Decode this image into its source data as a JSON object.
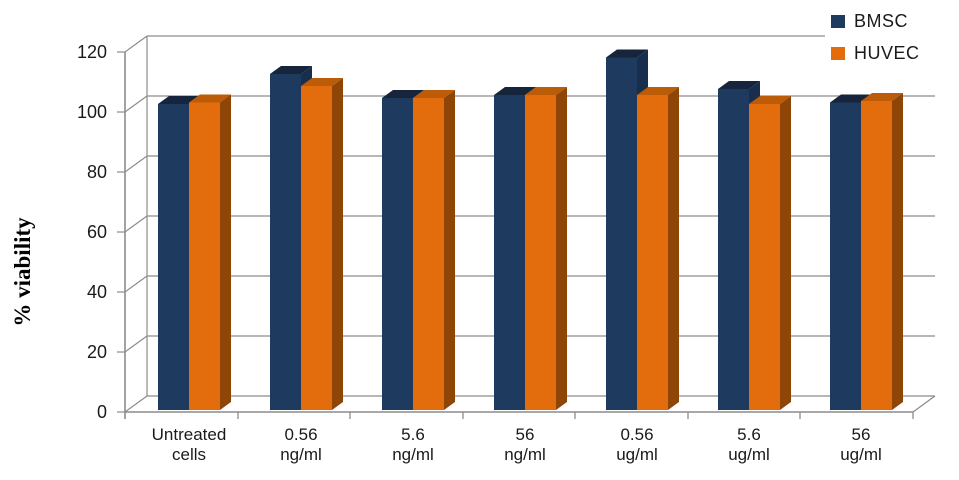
{
  "chart_data": {
    "type": "bar",
    "style": "3d-clustered-column",
    "title": "",
    "xlabel": "",
    "ylabel": "% viability",
    "ylim": [
      0,
      120
    ],
    "yticks": [
      0,
      20,
      40,
      60,
      80,
      100,
      120
    ],
    "grid": true,
    "legend_position": "top-right",
    "background_color": "#ffffff",
    "gridline_color": "#8c8c8c",
    "text_color": "#1a1a1a",
    "categories": [
      [
        "Untreated",
        "cells"
      ],
      [
        "0.56",
        "ng/ml"
      ],
      [
        "5.6",
        "ng/ml"
      ],
      [
        "56",
        "ng/ml"
      ],
      [
        "0.56",
        "ug/ml"
      ],
      [
        "5.6",
        "ug/ml"
      ],
      [
        "56",
        "ug/ml"
      ]
    ],
    "series": [
      {
        "name": "BMSC",
        "color": "#1F3A5F",
        "top_color": "#16243C",
        "side_color": "#182E4C",
        "values": [
          100,
          110,
          102,
          103,
          115.5,
          105,
          100.5
        ]
      },
      {
        "name": "HUVEC",
        "color": "#E36D0C",
        "top_color": "#BC5B08",
        "side_color": "#8F4506",
        "values": [
          100.5,
          106,
          102,
          103,
          103,
          100,
          101
        ]
      }
    ]
  }
}
